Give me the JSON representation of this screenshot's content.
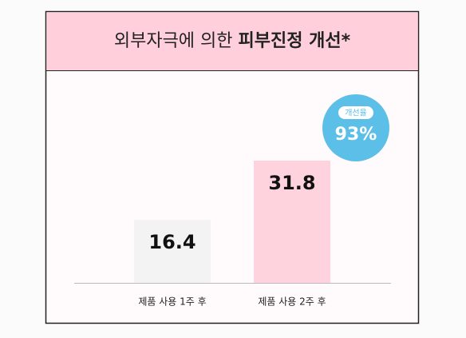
{
  "chart_data": {
    "type": "bar",
    "title": [
      "외부자극에 의한",
      "피부진정 개선*"
    ],
    "categories": [
      "제품 사용 1주 후",
      "제품 사용 2주 후"
    ],
    "values": [
      16.4,
      31.8
    ],
    "colors": [
      "#f3f3f3",
      "#ffd3de"
    ],
    "badge": {
      "label": "개선율",
      "text": "93%",
      "color": "#5bbfe8"
    }
  }
}
